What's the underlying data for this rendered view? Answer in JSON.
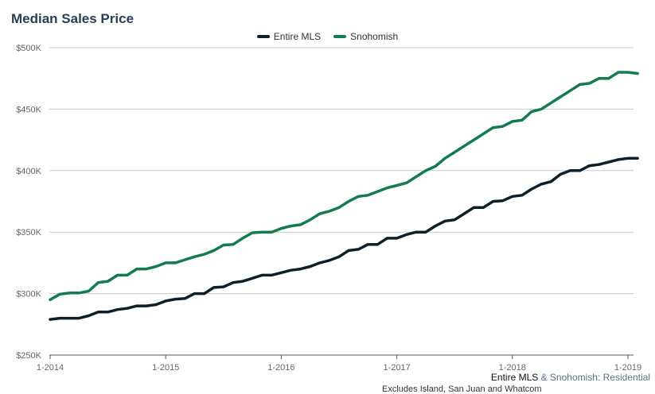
{
  "chart_data": {
    "type": "line",
    "title": "Median Sales Price",
    "xlabel": "",
    "ylabel": "",
    "ylim": [
      250000,
      500000
    ],
    "yticks": [
      250000,
      300000,
      350000,
      400000,
      450000,
      500000
    ],
    "ytick_labels": [
      "$250K",
      "$300K",
      "$350K",
      "$400K",
      "$450K",
      "$500K"
    ],
    "xtick_labels": [
      "1-2014",
      "1-2015",
      "1-2016",
      "1-2017",
      "1-2018",
      "1-2019"
    ],
    "grid": true,
    "legend_position": "top-center",
    "x_start": "2014-01",
    "x_end": "2019-02",
    "series": [
      {
        "name": "Entire MLS",
        "color": "#0d1f2a",
        "values": [
          279000,
          280000,
          280000,
          280000,
          282000,
          285000,
          285000,
          287000,
          288000,
          290000,
          290000,
          291000,
          294000,
          295500,
          296000,
          300000,
          300000,
          305000,
          305500,
          309000,
          310000,
          312500,
          315000,
          315000,
          317000,
          319000,
          320000,
          322000,
          325000,
          327000,
          330000,
          335000,
          336000,
          340000,
          340000,
          345000,
          345000,
          348000,
          350000,
          350000,
          355000,
          359000,
          360000,
          365000,
          370000,
          370000,
          375000,
          375500,
          379000,
          380000,
          385000,
          389000,
          391000,
          397000,
          400000,
          400000,
          404000,
          405000,
          407000,
          409000,
          410000,
          410000
        ]
      },
      {
        "name": "Snohomish",
        "color": "#127c4e",
        "values": [
          295000,
          299500,
          300500,
          300500,
          302000,
          309000,
          310000,
          315000,
          315000,
          320000,
          320000,
          322000,
          325000,
          325000,
          327500,
          330000,
          332000,
          335000,
          339500,
          340000,
          345000,
          349500,
          350000,
          350000,
          353000,
          355000,
          356000,
          360000,
          365000,
          367000,
          370000,
          375000,
          379000,
          380000,
          383000,
          386000,
          388000,
          390000,
          395000,
          400000,
          403500,
          410000,
          415000,
          420000,
          425000,
          430000,
          435000,
          436000,
          440000,
          441000,
          448000,
          450000,
          455000,
          460000,
          465000,
          470000,
          471000,
          475000,
          475000,
          480000,
          480000,
          479000
        ]
      }
    ]
  },
  "footer": {
    "part1": "Entire MLS",
    "part2": " & Snohomish: Residential",
    "note": "Excludes Island, San Juan and Whatcom"
  }
}
